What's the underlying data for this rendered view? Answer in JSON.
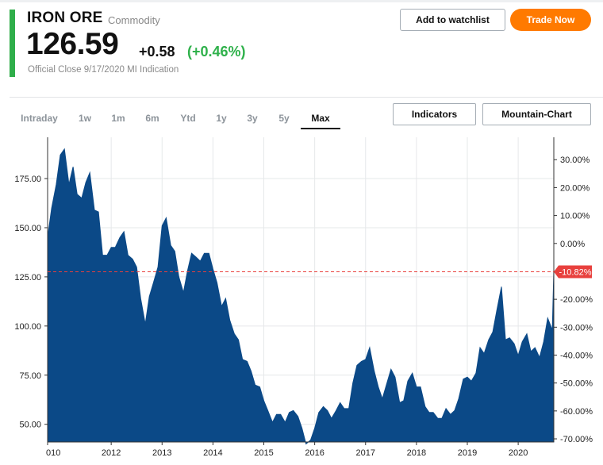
{
  "header": {
    "title": "IRON ORE",
    "category": "Commodity",
    "price": "126.59",
    "change": "+0.58",
    "change_pct": "(+0.46%)",
    "close_note": "Official Close 9/17/2020 MI Indication",
    "watchlist_label": "Add to watchlist",
    "trade_label": "Trade Now"
  },
  "tabs": [
    "Intraday",
    "1w",
    "1m",
    "6m",
    "Ytd",
    "1y",
    "3y",
    "5y",
    "Max"
  ],
  "active_tab": "Max",
  "tools": {
    "indicators_label": "Indicators",
    "mountain_label": "Mountain-Chart"
  },
  "colors": {
    "accent": "#2fae4a",
    "positive": "#2fb14b",
    "trade_button": "#ff7a00",
    "area_fill": "#0b4987",
    "marker": "#e8403d"
  },
  "chart_data": {
    "type": "area",
    "x_unit": "year",
    "x_tick_labels": [
      "010",
      "2012",
      "2013",
      "2014",
      "2015",
      "2016",
      "2017",
      "2018",
      "2019",
      "2020"
    ],
    "x_tick_values": [
      2010.0,
      2011.25,
      2012.25,
      2013.25,
      2014.25,
      2015.25,
      2016.25,
      2017.25,
      2018.25,
      2019.25
    ],
    "xlim": [
      2010.0,
      2019.95
    ],
    "ylim": [
      41,
      196
    ],
    "y_left_ticks": [
      "175.00",
      "150.00",
      "125.00",
      "100.00",
      "75.00",
      "50.00"
    ],
    "y_left_values": [
      175,
      150,
      125,
      100,
      75,
      50
    ],
    "y_right_ticks": [
      "30.00%",
      "20.00%",
      "10.00%",
      "0.00%",
      "-20.00%",
      "-30.00%",
      "-40.00%",
      "-50.00%",
      "-60.00%",
      "-70.00%"
    ],
    "y_right_values": [
      30,
      20,
      10,
      0,
      -20,
      -30,
      -40,
      -50,
      -60,
      -70
    ],
    "right_axis_base": 142,
    "marker": {
      "value": 127.6,
      "label": "-10.82%"
    },
    "grid": true,
    "series": [
      {
        "x": [
          2010.0,
          2010.08,
          2010.17,
          2010.25,
          2010.33,
          2010.42,
          2010.5,
          2010.58,
          2010.67,
          2010.75,
          2010.83,
          2010.92,
          2011.0,
          2011.08,
          2011.17,
          2011.25,
          2011.33,
          2011.42,
          2011.5,
          2011.58,
          2011.67,
          2011.75,
          2011.83,
          2011.92,
          2012.0,
          2012.08,
          2012.17,
          2012.25,
          2012.33,
          2012.42,
          2012.5,
          2012.58,
          2012.67,
          2012.75,
          2012.83,
          2012.92,
          2013.0,
          2013.08,
          2013.17,
          2013.25,
          2013.33,
          2013.42,
          2013.5,
          2013.58,
          2013.67,
          2013.75,
          2013.83,
          2013.92,
          2014.0,
          2014.08,
          2014.17,
          2014.25,
          2014.33,
          2014.42,
          2014.5,
          2014.58,
          2014.67,
          2014.75,
          2014.83,
          2014.92,
          2015.0,
          2015.08,
          2015.17,
          2015.25,
          2015.33,
          2015.42,
          2015.5,
          2015.58,
          2015.67,
          2015.75,
          2015.83,
          2015.92,
          2016.0,
          2016.08,
          2016.17,
          2016.25,
          2016.33,
          2016.42,
          2016.5,
          2016.58,
          2016.67,
          2016.75,
          2016.83,
          2016.92,
          2017.0,
          2017.08,
          2017.17,
          2017.25,
          2017.33,
          2017.42,
          2017.5,
          2017.58,
          2017.67,
          2017.75,
          2017.83,
          2017.92,
          2018.0,
          2018.08,
          2018.17,
          2018.25,
          2018.33,
          2018.42,
          2018.5,
          2018.58,
          2018.67,
          2018.75,
          2018.83,
          2018.92,
          2019.0,
          2019.08,
          2019.17,
          2019.25,
          2019.33,
          2019.42,
          2019.5,
          2019.58,
          2019.67,
          2019.75,
          2019.83,
          2019.92,
          2019.95
        ],
        "values": [
          145,
          160,
          172,
          187,
          190,
          172,
          181,
          167,
          165,
          173,
          178,
          159,
          158,
          136,
          136,
          140,
          140,
          145,
          148,
          136,
          134,
          130,
          114,
          101,
          115,
          122,
          130,
          151,
          155,
          141,
          138,
          125,
          117,
          128,
          137,
          135,
          133,
          137,
          137,
          129,
          122,
          110,
          114,
          103,
          96,
          93,
          83,
          82,
          77,
          70,
          69,
          62,
          57,
          51,
          55,
          55,
          51,
          56,
          57,
          54,
          48,
          40,
          42,
          48,
          56,
          59,
          57,
          53,
          57,
          61,
          58,
          58,
          71,
          80,
          82,
          83,
          89,
          77,
          69,
          63,
          71,
          78,
          74,
          61,
          62,
          72,
          76,
          69,
          69,
          59,
          56,
          56,
          53,
          53,
          58,
          55,
          57,
          63,
          73,
          74,
          72,
          76,
          89,
          86,
          93,
          97,
          108,
          120,
          93,
          94,
          91,
          85,
          92,
          96,
          87,
          89,
          84,
          92,
          104,
          98,
          128
        ]
      }
    ]
  }
}
